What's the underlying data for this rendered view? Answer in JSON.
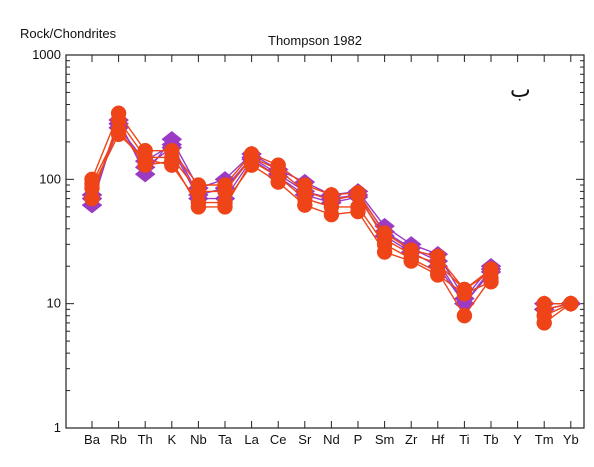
{
  "chart_data": {
    "type": "scatter",
    "title": "Thompson 1982",
    "ylabel": "Rock/Chondrites",
    "panel_tag": "ب",
    "y_scale": "log",
    "ylim": [
      1,
      1000
    ],
    "y_ticks": [
      {
        "value": 1,
        "label": "1"
      },
      {
        "value": 10,
        "label": "10"
      },
      {
        "value": 100,
        "label": "100"
      },
      {
        "value": 1000,
        "label": "1000"
      }
    ],
    "categories": [
      "Ba",
      "Rb",
      "Th",
      "K",
      "Nb",
      "Ta",
      "La",
      "Ce",
      "Sr",
      "Nd",
      "P",
      "Sm",
      "Zr",
      "Hf",
      "Ti",
      "Tb",
      "Y",
      "Tm",
      "Yb"
    ],
    "grid": false,
    "colors": {
      "purple": "#9b3bc4",
      "red": "#ee4418",
      "axis": "#222222"
    },
    "series": [
      {
        "marker": "diamond",
        "color": "#9b3bc4",
        "values": [
          62,
          300,
          110,
          210,
          85,
          100,
          160,
          120,
          95,
          75,
          80,
          42,
          30,
          25,
          11,
          20,
          null,
          10,
          10
        ]
      },
      {
        "marker": "diamond",
        "color": "#9b3bc4",
        "values": [
          75,
          260,
          140,
          190,
          75,
          85,
          150,
          110,
          80,
          70,
          75,
          38,
          28,
          22,
          10,
          18,
          null,
          9,
          10
        ]
      },
      {
        "marker": "diamond",
        "color": "#9b3bc4",
        "values": [
          70,
          280,
          125,
          180,
          70,
          70,
          145,
          105,
          75,
          65,
          72,
          35,
          26,
          20,
          10,
          19,
          null,
          9,
          10
        ]
      },
      {
        "marker": "circle",
        "color": "#ee4418",
        "values": [
          100,
          340,
          170,
          170,
          90,
          90,
          160,
          130,
          90,
          75,
          78,
          37,
          27,
          24,
          13,
          19,
          null,
          10,
          10
        ]
      },
      {
        "marker": "circle",
        "color": "#ee4418",
        "values": [
          70,
          300,
          150,
          150,
          80,
          80,
          150,
          120,
          80,
          68,
          75,
          33,
          25,
          21,
          13,
          18,
          null,
          9,
          10
        ]
      },
      {
        "marker": "circle",
        "color": "#ee4418",
        "values": [
          92,
          250,
          130,
          140,
          60,
          60,
          140,
          105,
          70,
          60,
          60,
          30,
          23,
          18,
          8,
          16,
          null,
          8,
          10
        ]
      },
      {
        "marker": "circle",
        "color": "#ee4418",
        "values": [
          85,
          230,
          145,
          130,
          65,
          65,
          130,
          95,
          62,
          52,
          55,
          26,
          22,
          17,
          12,
          15,
          null,
          7,
          10
        ]
      }
    ]
  }
}
